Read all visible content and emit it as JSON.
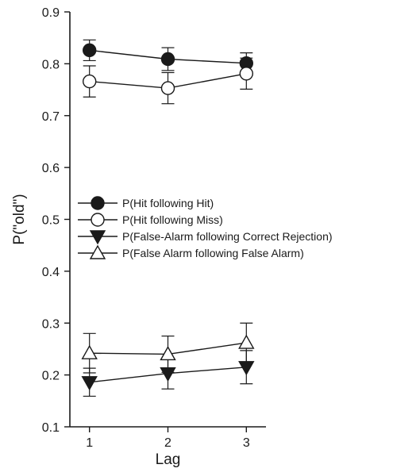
{
  "chart_data": {
    "type": "line",
    "xlabel": "Lag",
    "ylabel": "P(\"old\")",
    "x": [
      1,
      2,
      3
    ],
    "xlim": [
      0.75,
      3.25
    ],
    "ylim": [
      0.1,
      0.9
    ],
    "xticks": [
      "1",
      "2",
      "3"
    ],
    "yticks": [
      "0.1",
      "0.2",
      "0.3",
      "0.4",
      "0.5",
      "0.6",
      "0.7",
      "0.8",
      "0.9"
    ],
    "grid": false,
    "legend_position": "middle-left",
    "series": [
      {
        "name": "P(Hit following Hit)",
        "marker": "circle-filled",
        "values": [
          0.826,
          0.809,
          0.801
        ],
        "errors": [
          0.02,
          0.022,
          0.02
        ]
      },
      {
        "name": "P(Hit following Miss)",
        "marker": "circle-open",
        "values": [
          0.766,
          0.753,
          0.781
        ],
        "errors": [
          0.03,
          0.03,
          0.03
        ]
      },
      {
        "name": "P(False-Alarm following Correct Rejection)",
        "marker": "triangle-down-filled",
        "values": [
          0.186,
          0.203,
          0.215
        ],
        "errors": [
          0.027,
          0.03,
          0.032
        ]
      },
      {
        "name": "P(False Alarm following False Alarm)",
        "marker": "triangle-up-open",
        "values": [
          0.242,
          0.24,
          0.262
        ],
        "errors": [
          0.038,
          0.035,
          0.038
        ]
      }
    ]
  }
}
